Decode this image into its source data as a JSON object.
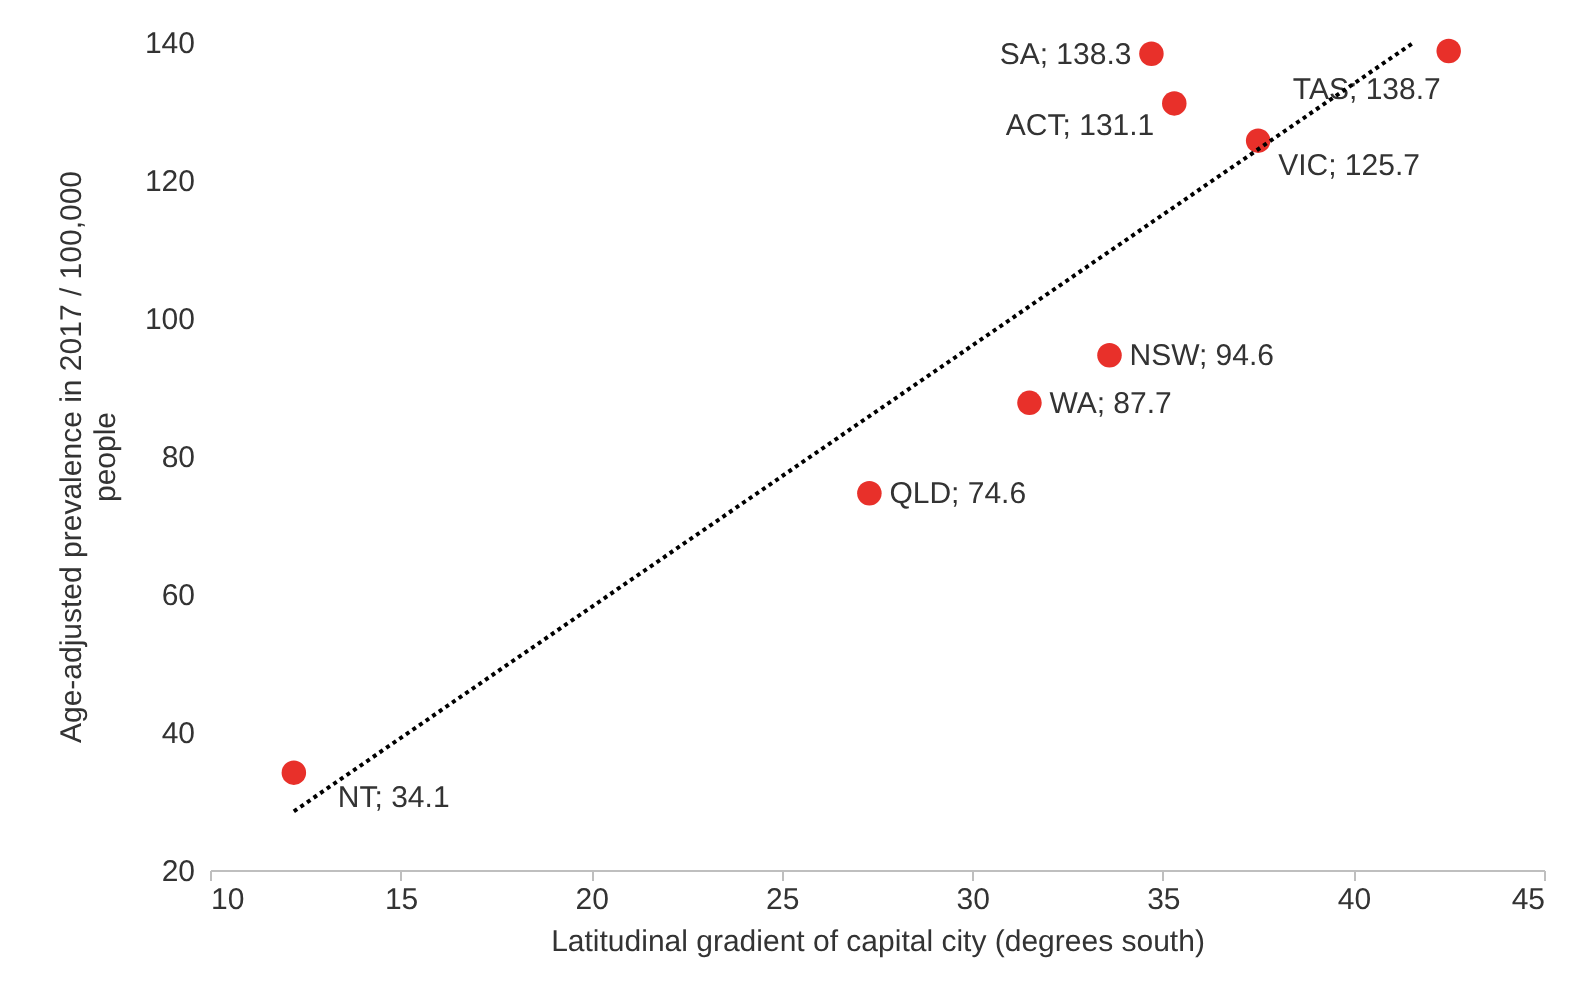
{
  "chart_data": {
    "type": "scatter",
    "xlabel": "Latitudinal gradient of capital city (degrees south)",
    "ylabel": "Age-adjusted prevalence in 2017 / 100,000 people",
    "series": [
      {
        "color": "#e8302a",
        "x": [
          12.2,
          27.3,
          31.5,
          33.6,
          34.7,
          35.3,
          37.5,
          42.5
        ],
        "values": [
          34.1,
          74.6,
          87.7,
          94.6,
          138.3,
          131.1,
          125.7,
          138.7
        ],
        "value_labels": [
          "NT; 34.1",
          "QLD; 74.6",
          "WA; 87.7",
          "NSW; 94.6",
          "SA; 138.3",
          "ACT; 131.1",
          "VIC; 125.7",
          "TAS; 138.7"
        ],
        "marker": "circle"
      },
      {
        "type": "line",
        "color": "#000000",
        "x": [
          12.2,
          41.6
        ],
        "values": [
          28.5,
          140
        ],
        "line_style": "dotted",
        "marker": "none"
      }
    ],
    "xlim": [
      10,
      45
    ],
    "xticks": [
      10,
      15,
      20,
      25,
      30,
      35,
      40,
      45
    ],
    "ylim": [
      20,
      140
    ],
    "yticks": [
      20,
      40,
      60,
      80,
      100,
      120,
      140
    ],
    "grid": false
  }
}
